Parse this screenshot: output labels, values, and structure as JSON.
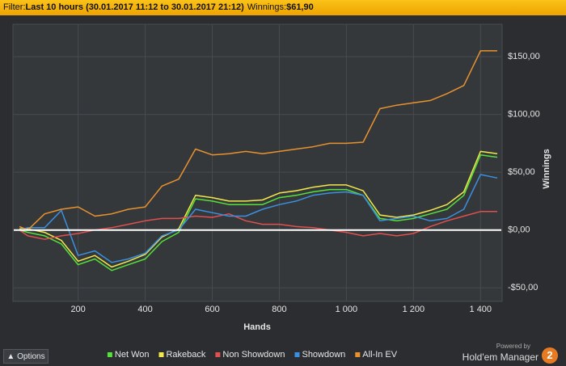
{
  "header": {
    "filter_label": "Filter:",
    "filter_value": "Last 10 hours (30.01.2017 11:12 to 30.01.2017 21:12)",
    "winnings_label": "Winnings:",
    "winnings_value": "$61,90"
  },
  "chart_data": {
    "type": "line",
    "x_label": "Hands",
    "y_label": "Winnings",
    "x": [
      25,
      50,
      100,
      150,
      200,
      250,
      300,
      350,
      400,
      450,
      500,
      550,
      600,
      650,
      700,
      750,
      800,
      850,
      900,
      950,
      1000,
      1050,
      1100,
      1150,
      1200,
      1250,
      1300,
      1350,
      1400,
      1450
    ],
    "xlim": [
      8,
      1462
    ],
    "xticks": [
      200,
      400,
      600,
      800,
      {
        "value": 1000,
        "label": "1 000"
      },
      {
        "value": 1200,
        "label": "1 200"
      },
      {
        "value": 1400,
        "label": "1 400"
      }
    ],
    "ylim": [
      -61,
      178
    ],
    "yticks": [
      {
        "value": -50,
        "label": "-$50,00"
      },
      {
        "value": 0,
        "label": "$0,00"
      },
      {
        "value": 50,
        "label": "$50,00"
      },
      {
        "value": 100,
        "label": "$100,00"
      },
      {
        "value": 150,
        "label": "$150,00"
      }
    ],
    "grid": true,
    "series": [
      {
        "name": "Net Won",
        "color": "#55e03a",
        "values": [
          0,
          -2,
          -5,
          -12,
          -30,
          -25,
          -35,
          -30,
          -25,
          -10,
          -2,
          27,
          25,
          22,
          22,
          22,
          28,
          30,
          33,
          35,
          35,
          30,
          10,
          8,
          10,
          14,
          18,
          30,
          65,
          63
        ]
      },
      {
        "name": "Rakeback",
        "color": "#f2e84a",
        "values": [
          1,
          1,
          -2,
          -9,
          -27,
          -22,
          -32,
          -27,
          -21,
          -6,
          1,
          30,
          28,
          25,
          25,
          26,
          32,
          34,
          37,
          39,
          39,
          34,
          13,
          11,
          13,
          17,
          22,
          33,
          68,
          66
        ]
      },
      {
        "name": "Non Showdown",
        "color": "#e0504f",
        "values": [
          0,
          -5,
          -8,
          -5,
          -3,
          0,
          2,
          5,
          8,
          10,
          10,
          12,
          11,
          14,
          8,
          5,
          5,
          3,
          2,
          0,
          -2,
          -5,
          -3,
          -5,
          -3,
          3,
          8,
          12,
          16,
          16
        ]
      },
      {
        "name": "Showdown",
        "color": "#3b8fe0",
        "values": [
          0,
          2,
          2,
          17,
          -22,
          -18,
          -28,
          -25,
          -20,
          -5,
          0,
          18,
          15,
          12,
          12,
          18,
          22,
          25,
          30,
          32,
          33,
          30,
          8,
          10,
          12,
          8,
          10,
          18,
          48,
          45
        ]
      },
      {
        "name": "All-In EV",
        "color": "#e8922f",
        "values": [
          3,
          0,
          14,
          18,
          20,
          12,
          14,
          18,
          20,
          38,
          44,
          70,
          65,
          66,
          68,
          66,
          68,
          70,
          72,
          75,
          75,
          76,
          105,
          108,
          110,
          112,
          118,
          125,
          155,
          155
        ]
      }
    ]
  },
  "footer": {
    "options": "Options",
    "powered_by": "Powered by",
    "brand": "Hold'em Manager",
    "version": "2"
  }
}
